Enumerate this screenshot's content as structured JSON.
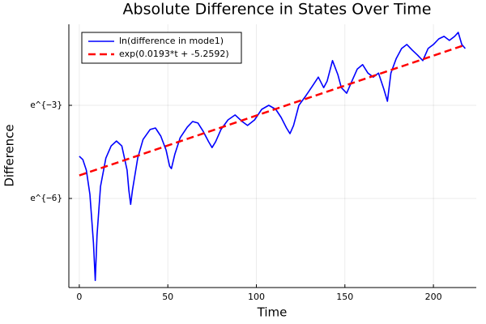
{
  "chart_data": {
    "type": "line",
    "title": "Absolute Difference in States Over Time",
    "xlabel": "Time",
    "ylabel": "Difference",
    "xlim": [
      -5.9,
      224.2
    ],
    "ylim": [
      -8.87,
      -0.39
    ],
    "xticks": [
      0,
      50,
      100,
      150,
      200
    ],
    "yticks": [
      {
        "value": -3,
        "label": "e^{−3}"
      },
      {
        "value": -6,
        "label": "e^{−6}"
      }
    ],
    "grid": true,
    "legend": "upper left",
    "series": [
      {
        "name": "ln(difference in mode1)",
        "color": "#0000ff",
        "dash": false,
        "x": [
          0,
          2,
          4,
          6,
          8,
          9,
          10,
          12,
          15,
          18,
          21,
          24,
          27,
          28,
          29,
          30,
          33,
          36,
          40,
          43,
          46,
          49,
          51,
          52,
          54,
          57,
          61,
          64,
          67,
          70,
          73,
          75,
          77,
          80,
          84,
          88,
          92,
          95,
          99,
          103,
          107,
          111,
          114,
          117,
          119,
          121,
          124,
          128,
          132,
          135,
          138,
          140,
          143,
          146,
          148,
          151,
          154,
          157,
          160,
          163,
          166,
          169,
          172,
          174,
          176,
          179,
          182,
          185,
          188,
          191,
          194,
          197,
          200,
          203,
          206,
          209,
          212,
          214,
          216,
          218
        ],
        "values": [
          -4.64,
          -4.75,
          -5.09,
          -5.87,
          -7.44,
          -8.64,
          -7.18,
          -5.61,
          -4.7,
          -4.31,
          -4.15,
          -4.31,
          -5.09,
          -5.74,
          -6.19,
          -5.74,
          -4.7,
          -4.1,
          -3.78,
          -3.73,
          -3.99,
          -4.44,
          -4.96,
          -5.04,
          -4.57,
          -4.04,
          -3.7,
          -3.52,
          -3.57,
          -3.84,
          -4.17,
          -4.36,
          -4.17,
          -3.78,
          -3.47,
          -3.31,
          -3.52,
          -3.65,
          -3.47,
          -3.13,
          -3.0,
          -3.13,
          -3.39,
          -3.73,
          -3.91,
          -3.65,
          -3.0,
          -2.69,
          -2.35,
          -2.09,
          -2.43,
          -2.22,
          -1.56,
          -2.01,
          -2.43,
          -2.61,
          -2.22,
          -1.83,
          -1.69,
          -1.96,
          -2.09,
          -1.96,
          -2.48,
          -2.87,
          -1.96,
          -1.49,
          -1.17,
          -1.04,
          -1.22,
          -1.38,
          -1.56,
          -1.17,
          -1.04,
          -0.86,
          -0.78,
          -0.91,
          -0.78,
          -0.65,
          -1.04,
          -1.17
        ]
      },
      {
        "name": "exp(0.0193*t + -5.2592)",
        "color": "#ff0000",
        "dash": true,
        "x": [
          0,
          218
        ],
        "values": [
          -5.2592,
          -1.052
        ]
      }
    ]
  }
}
